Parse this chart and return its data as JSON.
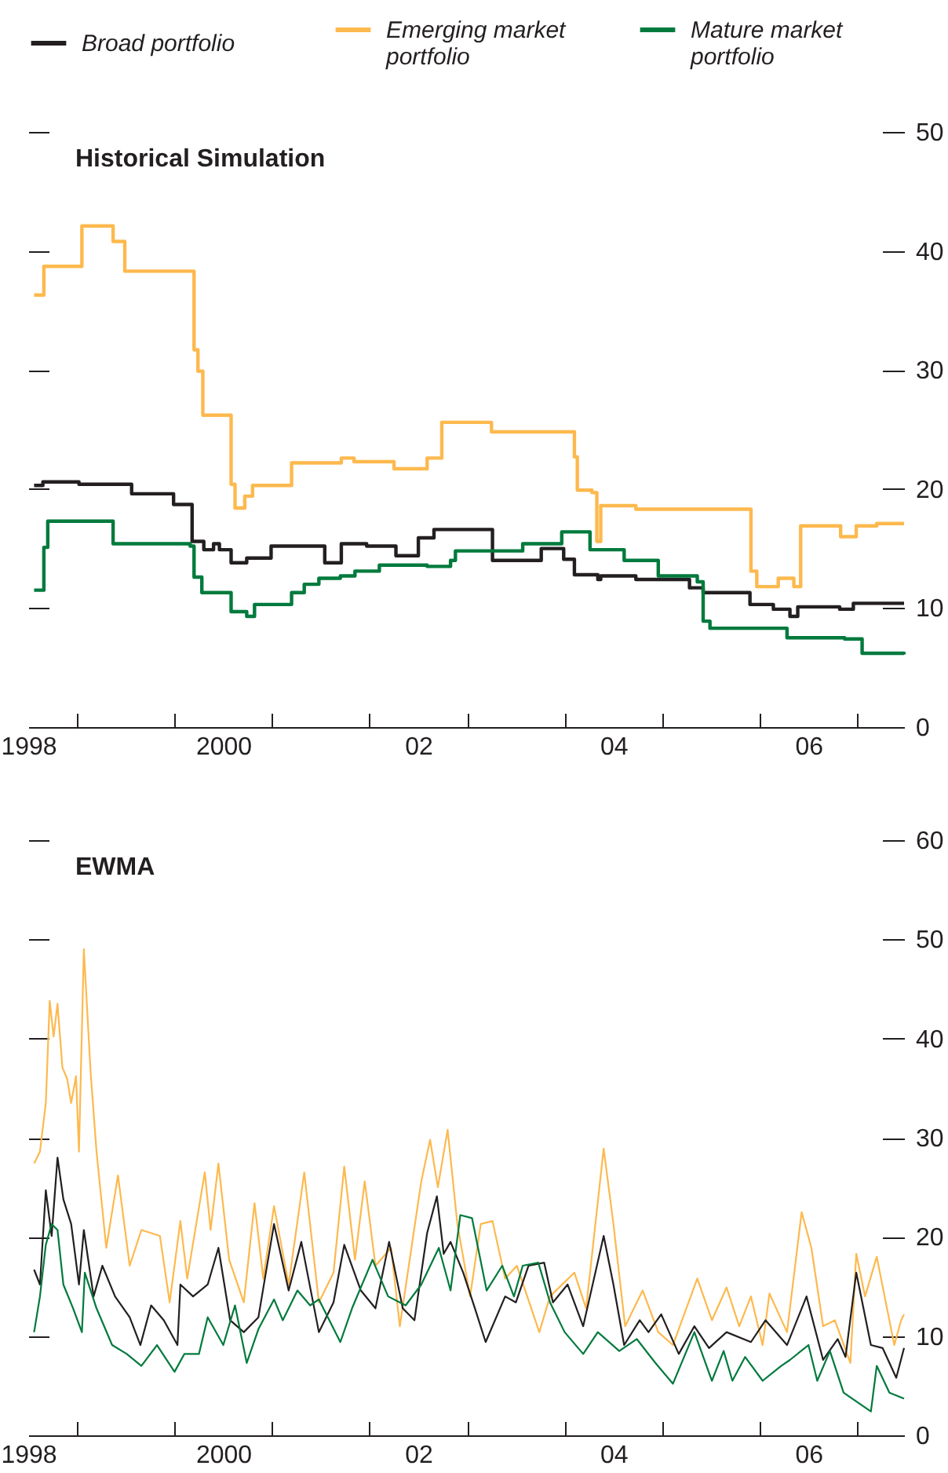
{
  "chart_data": [
    {
      "type": "step",
      "title": "Historical Simulation",
      "legend": "top",
      "xlim": [
        1998,
        2006.98
      ],
      "xticks": [
        {
          "value": 1998,
          "label": "1998"
        },
        {
          "value": 1998.5,
          "label": null
        },
        {
          "value": 1999.5,
          "label": null
        },
        {
          "value": 2000,
          "label": "2000"
        },
        {
          "value": 2000.5,
          "label": null
        },
        {
          "value": 2001.5,
          "label": null
        },
        {
          "value": 2002,
          "label": "02"
        },
        {
          "value": 2002.5,
          "label": null
        },
        {
          "value": 2003.5,
          "label": null
        },
        {
          "value": 2004,
          "label": "04"
        },
        {
          "value": 2004.5,
          "label": null
        },
        {
          "value": 2005.5,
          "label": null
        },
        {
          "value": 2006,
          "label": "06"
        },
        {
          "value": 2006.5,
          "label": null
        }
      ],
      "ylim": [
        0,
        50
      ],
      "yticks": [
        0,
        10,
        20,
        30,
        40,
        50
      ],
      "series": [
        {
          "name": "Broad portfolio",
          "color": "#231f20",
          "x": [
            1998.06,
            1998.15,
            1998.52,
            1999.06,
            1999.49,
            1999.68,
            1999.8,
            1999.9,
            1999.96,
            2000.08,
            2000.24,
            2000.49,
            2001.04,
            2001.21,
            2001.47,
            2001.77,
            2002.0,
            2002.16,
            2002.76,
            2003.26,
            2003.49,
            2003.6,
            2003.84,
            2003.87,
            2004.23,
            2004.78,
            2004.92,
            2005.4,
            2005.64,
            2005.81,
            2005.89,
            2006.32,
            2006.46,
            2006.98
          ],
          "values": [
            20.3,
            20.6,
            20.4,
            19.6,
            18.7,
            15.6,
            14.9,
            15.4,
            14.9,
            13.8,
            14.2,
            15.2,
            13.8,
            15.4,
            15.2,
            14.4,
            15.9,
            16.6,
            14.0,
            15.0,
            14.1,
            12.8,
            12.4,
            12.7,
            12.4,
            11.7,
            11.3,
            10.3,
            9.9,
            9.3,
            10.1,
            9.9,
            10.4,
            10.4
          ]
        },
        {
          "name": "Emerging market portfolio",
          "color": "#fdb94e",
          "x": [
            1998.06,
            1998.16,
            1998.55,
            1998.87,
            1998.99,
            1999.7,
            1999.74,
            1999.79,
            2000.08,
            2000.12,
            2000.22,
            2000.3,
            2000.7,
            2001.21,
            2001.34,
            2001.75,
            2002.09,
            2002.24,
            2002.75,
            2003.6,
            2003.63,
            2003.78,
            2003.83,
            2003.87,
            2004.23,
            2005.41,
            2005.47,
            2005.69,
            2005.85,
            2005.92,
            2006.33,
            2006.49,
            2006.7,
            2006.98
          ],
          "values": [
            36.3,
            38.7,
            42.1,
            40.8,
            38.3,
            31.7,
            29.9,
            26.2,
            20.4,
            18.4,
            19.4,
            20.3,
            22.2,
            22.6,
            22.3,
            21.7,
            22.6,
            25.6,
            24.8,
            22.7,
            19.9,
            19.7,
            15.6,
            18.6,
            18.3,
            13.1,
            11.8,
            12.5,
            11.8,
            16.9,
            16.0,
            16.9,
            17.1,
            17.1
          ]
        },
        {
          "name": "Mature market portfolio",
          "color": "#007a3d",
          "x": [
            1998.06,
            1998.16,
            1998.2,
            1998.87,
            1999.66,
            1999.7,
            1999.78,
            2000.08,
            2000.24,
            2000.32,
            2000.7,
            2000.83,
            2000.98,
            2001.2,
            2001.35,
            2001.6,
            2002.09,
            2002.33,
            2002.38,
            2003.07,
            2003.47,
            2003.76,
            2004.11,
            2004.46,
            2004.86,
            2004.92,
            2004.99,
            2005.78,
            2006.37,
            2006.55,
            2006.98
          ],
          "values": [
            11.5,
            15.1,
            17.3,
            15.4,
            15.2,
            12.6,
            11.3,
            9.7,
            9.3,
            10.3,
            11.3,
            12.0,
            12.5,
            12.7,
            13.1,
            13.6,
            13.5,
            14.0,
            14.8,
            15.4,
            16.4,
            14.9,
            14.0,
            12.7,
            12.2,
            8.9,
            8.3,
            7.5,
            7.4,
            6.2,
            6.1
          ]
        }
      ]
    },
    {
      "type": "line",
      "title": "EWMA",
      "xlim": [
        1998,
        2006.98
      ],
      "xticks": [
        {
          "value": 1998,
          "label": "1998"
        },
        {
          "value": 1998.5,
          "label": null
        },
        {
          "value": 1999.5,
          "label": null
        },
        {
          "value": 2000,
          "label": "2000"
        },
        {
          "value": 2000.5,
          "label": null
        },
        {
          "value": 2001.5,
          "label": null
        },
        {
          "value": 2002,
          "label": "02"
        },
        {
          "value": 2002.5,
          "label": null
        },
        {
          "value": 2003.5,
          "label": null
        },
        {
          "value": 2004,
          "label": "04"
        },
        {
          "value": 2004.5,
          "label": null
        },
        {
          "value": 2005.5,
          "label": null
        },
        {
          "value": 2006,
          "label": "06"
        },
        {
          "value": 2006.5,
          "label": null
        }
      ],
      "ylim": [
        0,
        60
      ],
      "yticks": [
        0,
        10,
        20,
        30,
        40,
        50,
        60
      ],
      "series": [
        {
          "color": "#fdb94e",
          "x": [
            1998.06,
            1998.12,
            1998.18,
            1998.22,
            1998.26,
            1998.3,
            1998.35,
            1998.4,
            1998.44,
            1998.49,
            1998.52,
            1998.57,
            1998.64,
            1998.7,
            1998.8,
            1998.92,
            1999.04,
            1999.16,
            1999.35,
            1999.45,
            1999.56,
            1999.63,
            1999.81,
            1999.87,
            1999.95,
            2000.06,
            2000.21,
            2000.32,
            2000.41,
            2000.52,
            2000.67,
            2000.83,
            2000.98,
            2001.13,
            2001.24,
            2001.35,
            2001.45,
            2001.56,
            2001.72,
            2001.81,
            2002.03,
            2002.12,
            2002.2,
            2002.3,
            2002.4,
            2002.53,
            2002.64,
            2002.76,
            2002.89,
            2003.01,
            2003.24,
            2003.35,
            2003.6,
            2003.72,
            2003.9,
            2004.0,
            2004.12,
            2004.3,
            2004.46,
            2004.61,
            2004.86,
            2005.01,
            2005.16,
            2005.29,
            2005.41,
            2005.53,
            2005.6,
            2005.78,
            2005.93,
            2006.03,
            2006.15,
            2006.27,
            2006.43,
            2006.49,
            2006.58,
            2006.7,
            2006.88,
            2006.95,
            2006.98
          ],
          "values": [
            27.4,
            28.6,
            33.5,
            43.8,
            40.2,
            43.5,
            37.1,
            35.9,
            33.5,
            36.2,
            28.6,
            49.0,
            36.5,
            28.6,
            18.9,
            26.2,
            17.1,
            20.7,
            20.1,
            13.4,
            21.6,
            15.8,
            26.5,
            20.7,
            27.4,
            17.7,
            13.4,
            23.4,
            15.8,
            23.1,
            15.2,
            26.5,
            13.4,
            16.4,
            27.1,
            17.7,
            25.6,
            17.1,
            18.9,
            11.0,
            25.6,
            29.8,
            25.0,
            30.8,
            21.3,
            14.0,
            21.3,
            21.6,
            15.8,
            17.1,
            10.4,
            14.0,
            16.4,
            12.8,
            28.9,
            21.3,
            11.0,
            14.6,
            10.4,
            9.1,
            15.8,
            11.6,
            14.9,
            11.0,
            14.0,
            9.1,
            14.3,
            10.4,
            22.5,
            18.9,
            11.0,
            11.6,
            7.3,
            18.3,
            14.0,
            18.0,
            9.1,
            11.6,
            12.2
          ]
        },
        {
          "color": "#231f20",
          "x": [
            1998.06,
            1998.12,
            1998.18,
            1998.24,
            1998.3,
            1998.36,
            1998.44,
            1998.52,
            1998.57,
            1998.67,
            1998.76,
            1998.89,
            1999.04,
            1999.15,
            1999.26,
            1999.39,
            1999.53,
            1999.56,
            1999.69,
            1999.84,
            1999.95,
            2000.07,
            2000.21,
            2000.36,
            2000.52,
            2000.67,
            2000.8,
            2000.98,
            2001.13,
            2001.24,
            2001.41,
            2001.56,
            2001.7,
            2001.84,
            2001.96,
            2002.09,
            2002.19,
            2002.26,
            2002.33,
            2002.46,
            2002.58,
            2002.69,
            2002.89,
            2003.0,
            2003.13,
            2003.29,
            2003.38,
            2003.53,
            2003.69,
            2003.9,
            2004.0,
            2004.11,
            2004.27,
            2004.36,
            2004.49,
            2004.67,
            2004.83,
            2004.98,
            2005.16,
            2005.41,
            2005.56,
            2005.78,
            2005.98,
            2006.15,
            2006.3,
            2006.38,
            2006.49,
            2006.64,
            2006.76,
            2006.9,
            2006.98
          ],
          "values": [
            16.7,
            15.2,
            24.7,
            20.1,
            28.0,
            23.8,
            21.3,
            15.2,
            20.7,
            14.0,
            17.1,
            14.0,
            11.9,
            9.1,
            13.1,
            11.6,
            9.1,
            15.2,
            14.0,
            15.2,
            18.9,
            11.6,
            10.4,
            11.9,
            21.3,
            14.6,
            19.5,
            10.4,
            13.4,
            19.2,
            14.6,
            12.8,
            19.5,
            12.8,
            11.6,
            20.4,
            24.1,
            18.3,
            19.5,
            16.4,
            12.8,
            9.4,
            14.0,
            13.4,
            17.1,
            17.4,
            13.4,
            15.2,
            11.0,
            20.1,
            15.2,
            9.1,
            11.6,
            10.4,
            12.2,
            8.2,
            11.0,
            8.8,
            10.4,
            9.4,
            11.6,
            9.1,
            14.0,
            7.6,
            9.7,
            7.9,
            16.4,
            9.1,
            8.8,
            5.8,
            8.8
          ]
        },
        {
          "color": "#007a3d",
          "x": [
            1998.06,
            1998.12,
            1998.18,
            1998.24,
            1998.3,
            1998.36,
            1998.46,
            1998.55,
            1998.58,
            1998.7,
            1998.86,
            1999.01,
            1999.16,
            1999.32,
            1999.5,
            1999.6,
            1999.75,
            1999.84,
            2000.0,
            2000.12,
            2000.24,
            2000.36,
            2000.52,
            2000.61,
            2000.76,
            2000.89,
            2000.98,
            2001.2,
            2001.32,
            2001.53,
            2001.69,
            2001.87,
            2002.03,
            2002.21,
            2002.33,
            2002.43,
            2002.55,
            2002.7,
            2002.86,
            2002.98,
            2003.07,
            2003.23,
            2003.35,
            2003.5,
            2003.69,
            2003.84,
            2004.06,
            2004.24,
            2004.43,
            2004.61,
            2004.83,
            2005.01,
            2005.13,
            2005.22,
            2005.35,
            2005.53,
            2005.72,
            2005.81,
            2006.0,
            2006.09,
            2006.22,
            2006.36,
            2006.64,
            2006.7,
            2006.83,
            2006.98
          ],
          "values": [
            10.4,
            14.0,
            19.2,
            21.3,
            20.7,
            15.2,
            12.8,
            10.4,
            16.4,
            12.8,
            9.1,
            8.2,
            7.0,
            9.1,
            6.4,
            8.2,
            8.2,
            11.9,
            9.1,
            13.1,
            7.3,
            10.7,
            13.7,
            11.6,
            14.6,
            13.1,
            13.7,
            9.4,
            12.8,
            17.7,
            14.0,
            13.1,
            15.2,
            18.9,
            14.6,
            22.2,
            21.9,
            14.6,
            17.1,
            14.0,
            17.1,
            17.4,
            13.4,
            10.4,
            8.2,
            10.4,
            8.5,
            9.7,
            7.3,
            5.2,
            10.4,
            5.5,
            8.5,
            5.5,
            7.9,
            5.5,
            7.0,
            7.6,
            9.1,
            5.5,
            8.5,
            4.3,
            2.4,
            7.0,
            4.3,
            3.7
          ]
        }
      ]
    }
  ]
}
